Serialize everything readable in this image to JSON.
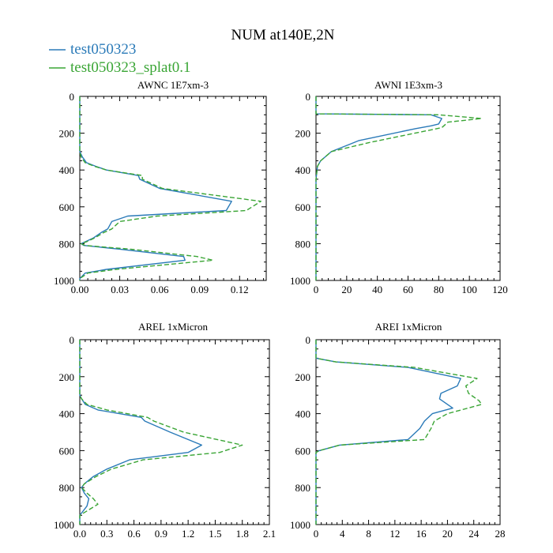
{
  "figure_title": "NUM at140E,2N",
  "legend": [
    {
      "label": "test050323",
      "color": "#2a7ab8",
      "dash": "solid"
    },
    {
      "label": "test050323_splat0.1",
      "color": "#3aa535",
      "dash": "dashed"
    }
  ],
  "chart_data": [
    {
      "type": "line",
      "title": "AWNC  1E7xm-3",
      "xlim": [
        0,
        0.14
      ],
      "xticks": [
        0.0,
        0.03,
        0.06,
        0.09,
        0.12
      ],
      "xticklabels": [
        "0.00",
        "0.03",
        "0.06",
        "0.09",
        "0.12"
      ],
      "ylim": [
        1000,
        0
      ],
      "yticks": [
        0,
        200,
        400,
        600,
        800,
        1000
      ],
      "yticklabels": [
        "0",
        "200",
        "400",
        "600",
        "800",
        "1000"
      ],
      "series": [
        {
          "name": "test050323",
          "y": [
            0,
            290,
            300,
            330,
            340,
            360,
            380,
            400,
            430,
            450,
            500,
            570,
            620,
            650,
            680,
            720,
            740,
            770,
            790,
            800,
            810,
            830,
            870,
            890,
            940,
            960,
            990,
            1000
          ],
          "x": [
            0,
            0,
            0,
            0.002,
            0.003,
            0.005,
            0.012,
            0.02,
            0.044,
            0.045,
            0.06,
            0.114,
            0.11,
            0.036,
            0.024,
            0.021,
            0.016,
            0.01,
            0.004,
            0.001,
            0.003,
            0.03,
            0.078,
            0.079,
            0.02,
            0.004,
            0,
            0
          ]
        },
        {
          "name": "test050323_splat0.1",
          "y": [
            0,
            290,
            300,
            330,
            340,
            360,
            380,
            400,
            430,
            450,
            500,
            570,
            620,
            650,
            680,
            720,
            740,
            770,
            790,
            800,
            810,
            830,
            870,
            890,
            940,
            960,
            990,
            1000
          ],
          "x": [
            0,
            0,
            0,
            0.001,
            0.002,
            0.004,
            0.011,
            0.02,
            0.047,
            0.047,
            0.062,
            0.136,
            0.125,
            0.058,
            0.03,
            0.024,
            0.018,
            0.011,
            0.005,
            0.001,
            0.004,
            0.038,
            0.088,
            0.1,
            0.027,
            0.006,
            0,
            0
          ]
        }
      ]
    },
    {
      "type": "line",
      "title": "AWNI  1E3xm-3",
      "xlim": [
        0,
        120
      ],
      "xticks": [
        0,
        20,
        40,
        60,
        80,
        100,
        120
      ],
      "xticklabels": [
        "0",
        "20",
        "40",
        "60",
        "80",
        "100",
        "120"
      ],
      "ylim": [
        1000,
        0
      ],
      "yticks": [
        0,
        200,
        400,
        600,
        800,
        1000
      ],
      "yticklabels": [
        "0",
        "200",
        "400",
        "600",
        "800",
        "1000"
      ],
      "series": [
        {
          "name": "test050323",
          "y": [
            0,
            95,
            100,
            120,
            150,
            160,
            175,
            240,
            260,
            300,
            350,
            380,
            450,
            1000
          ],
          "x": [
            0,
            0,
            75,
            82,
            80,
            75,
            65,
            28,
            22,
            10,
            3,
            1,
            0,
            0
          ]
        },
        {
          "name": "test050323_splat0.1",
          "y": [
            0,
            95,
            100,
            120,
            140,
            170,
            250,
            300,
            350,
            380,
            450,
            1000
          ],
          "x": [
            0,
            0,
            80,
            108,
            86,
            82,
            35,
            10,
            3,
            1,
            0,
            0
          ]
        }
      ]
    },
    {
      "type": "line",
      "title": "AREL  1xMicron",
      "xlim": [
        0,
        2.1
      ],
      "xticks": [
        0.0,
        0.3,
        0.6,
        0.9,
        1.2,
        1.5,
        1.8,
        2.1
      ],
      "xticklabels": [
        "0.0",
        "0.3",
        "0.6",
        "0.9",
        "1.2",
        "1.5",
        "1.8",
        "2.1"
      ],
      "ylim": [
        1000,
        0
      ],
      "yticks": [
        0,
        200,
        400,
        600,
        800,
        1000
      ],
      "yticklabels": [
        "0",
        "200",
        "400",
        "600",
        "800",
        "1000"
      ],
      "series": [
        {
          "name": "test050323",
          "y": [
            0,
            300,
            320,
            350,
            380,
            420,
            440,
            500,
            570,
            610,
            650,
            700,
            740,
            780,
            800,
            830,
            860,
            900,
            950,
            1000
          ],
          "x": [
            0,
            0,
            0.02,
            0.06,
            0.2,
            0.68,
            0.72,
            1.0,
            1.35,
            1.2,
            0.55,
            0.3,
            0.15,
            0.05,
            0.02,
            0.05,
            0.1,
            0.08,
            0,
            0
          ]
        },
        {
          "name": "test050323_splat0.1",
          "y": [
            0,
            300,
            320,
            350,
            380,
            420,
            440,
            500,
            570,
            610,
            650,
            700,
            740,
            780,
            800,
            830,
            860,
            890,
            950,
            1000
          ],
          "x": [
            0,
            0,
            0.02,
            0.08,
            0.3,
            0.75,
            0.82,
            1.15,
            1.8,
            1.55,
            0.7,
            0.35,
            0.18,
            0.05,
            0.02,
            0.08,
            0.15,
            0.2,
            0,
            0
          ]
        }
      ]
    },
    {
      "type": "line",
      "title": "AREI  1xMicron",
      "xlim": [
        0,
        28
      ],
      "xticks": [
        0,
        4,
        8,
        12,
        16,
        20,
        24,
        28
      ],
      "xticklabels": [
        "0",
        "4",
        "8",
        "12",
        "16",
        "20",
        "24",
        "28"
      ],
      "ylim": [
        1000,
        0
      ],
      "yticks": [
        0,
        200,
        400,
        600,
        800,
        1000
      ],
      "yticklabels": [
        "0",
        "200",
        "400",
        "600",
        "800",
        "1000"
      ],
      "series": [
        {
          "name": "test050323",
          "y": [
            0,
            100,
            120,
            150,
            210,
            250,
            290,
            320,
            370,
            400,
            440,
            480,
            540,
            570,
            600,
            610,
            1000
          ],
          "x": [
            0,
            0,
            3,
            14,
            22,
            21.5,
            19,
            18.8,
            20.8,
            17.7,
            16.5,
            15.8,
            14,
            3.6,
            0.5,
            0,
            0
          ]
        },
        {
          "name": "test050323_splat0.1",
          "y": [
            0,
            100,
            120,
            150,
            210,
            250,
            290,
            330,
            350,
            400,
            440,
            480,
            540,
            570,
            600,
            610,
            1000
          ],
          "x": [
            0,
            0,
            3,
            15,
            24.5,
            22.8,
            23.2,
            24.8,
            25.2,
            20,
            18,
            17.5,
            16.5,
            3.6,
            0.5,
            0,
            0
          ]
        }
      ]
    }
  ]
}
